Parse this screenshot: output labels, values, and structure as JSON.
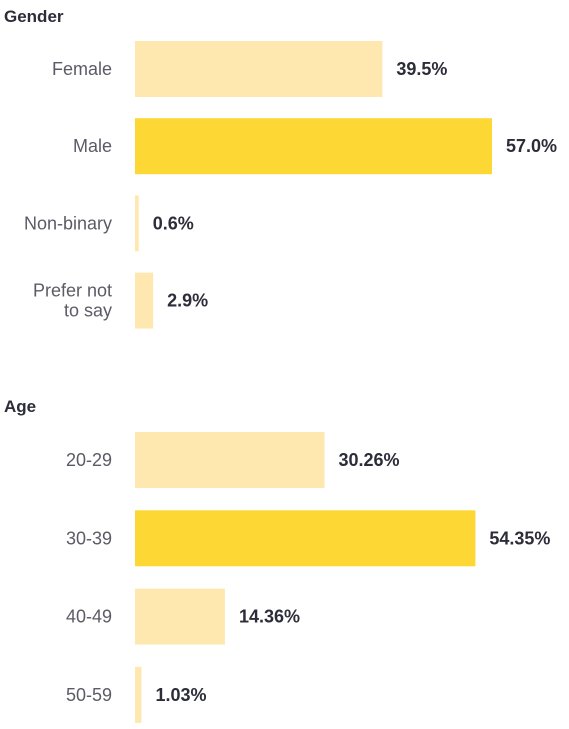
{
  "chart_data": [
    {
      "type": "bar",
      "orientation": "horizontal",
      "title": "Gender",
      "categories": [
        "Female",
        "Male",
        "Non-binary",
        "Prefer not to say"
      ],
      "category_lines": [
        [
          "Female"
        ],
        [
          "Male"
        ],
        [
          "Non-binary"
        ],
        [
          "Prefer not",
          "to say"
        ]
      ],
      "values": [
        39.5,
        57.0,
        0.6,
        2.9
      ],
      "value_labels": [
        "39.5%",
        "57.0%",
        "0.6%",
        "2.9%"
      ],
      "highlight_index": 1,
      "xlim": [
        0,
        57.0
      ],
      "grid": false
    },
    {
      "type": "bar",
      "orientation": "horizontal",
      "title": "Age",
      "categories": [
        "20-29",
        "30-39",
        "40-49",
        "50-59"
      ],
      "category_lines": [
        [
          "20-29"
        ],
        [
          "30-39"
        ],
        [
          "40-49"
        ],
        [
          "50-59"
        ]
      ],
      "values": [
        30.26,
        54.35,
        14.36,
        1.03
      ],
      "value_labels": [
        "30.26%",
        "54.35%",
        "14.36%",
        "1.03%"
      ],
      "highlight_index": 1,
      "xlim": [
        0,
        57.0
      ],
      "grid": false
    }
  ],
  "colors": {
    "bar": "#fee8b0",
    "bar_highlight": "#fdd835",
    "title_text": "#2d2d3a",
    "category_text": "#5b5b66",
    "value_text": "#2d2d3a"
  }
}
